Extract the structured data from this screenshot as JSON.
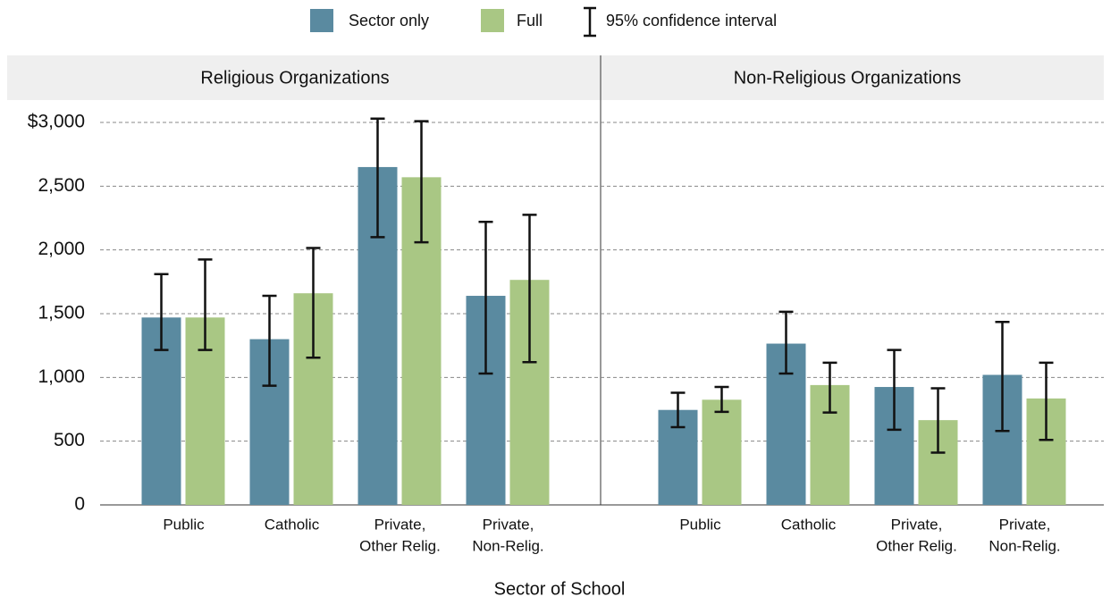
{
  "xlabel": "Sector of School",
  "ci_label": "95% confidence interval",
  "chart_data": [
    {
      "type": "bar",
      "title": "Religious Organizations",
      "categories": [
        [
          "Public"
        ],
        [
          "Catholic"
        ],
        [
          "Private,",
          "Other Relig."
        ],
        [
          "Private,",
          "Non-Relig."
        ]
      ],
      "ylim": [
        0,
        3150
      ],
      "yticks": [
        0,
        500,
        {
          "value": 1000,
          "label": "1,000"
        },
        {
          "value": 1500,
          "label": "1,500"
        },
        {
          "value": 2000,
          "label": "2,000"
        },
        {
          "value": 2500,
          "label": "2,500"
        },
        {
          "value": 3000,
          "label": "$3,000"
        }
      ],
      "grid": true,
      "series": [
        {
          "name": "Sector only",
          "color": "#5a8aa0",
          "values": [
            1470,
            1300,
            2650,
            1640
          ],
          "ci_low": [
            1215,
            935,
            2100,
            1030
          ],
          "ci_high": [
            1810,
            1640,
            3030,
            2220
          ]
        },
        {
          "name": "Full",
          "color": "#a9c784",
          "values": [
            1470,
            1660,
            2570,
            1765
          ],
          "ci_low": [
            1215,
            1155,
            2060,
            1120
          ],
          "ci_high": [
            1925,
            2015,
            3010,
            2275
          ]
        }
      ]
    },
    {
      "type": "bar",
      "title": "Non-Religious Organizations",
      "categories": [
        [
          "Public"
        ],
        [
          "Catholic"
        ],
        [
          "Private,",
          "Other Relig."
        ],
        [
          "Private,",
          "Non-Relig."
        ]
      ],
      "series": [
        {
          "name": "Sector only",
          "color": "#5a8aa0",
          "values": [
            745,
            1265,
            925,
            1020
          ],
          "ci_low": [
            610,
            1030,
            590,
            580
          ],
          "ci_high": [
            880,
            1515,
            1215,
            1435
          ]
        },
        {
          "name": "Full",
          "color": "#a9c784",
          "values": [
            825,
            940,
            665,
            835
          ],
          "ci_low": [
            730,
            725,
            410,
            510
          ],
          "ci_high": [
            925,
            1115,
            915,
            1115
          ]
        }
      ]
    }
  ]
}
